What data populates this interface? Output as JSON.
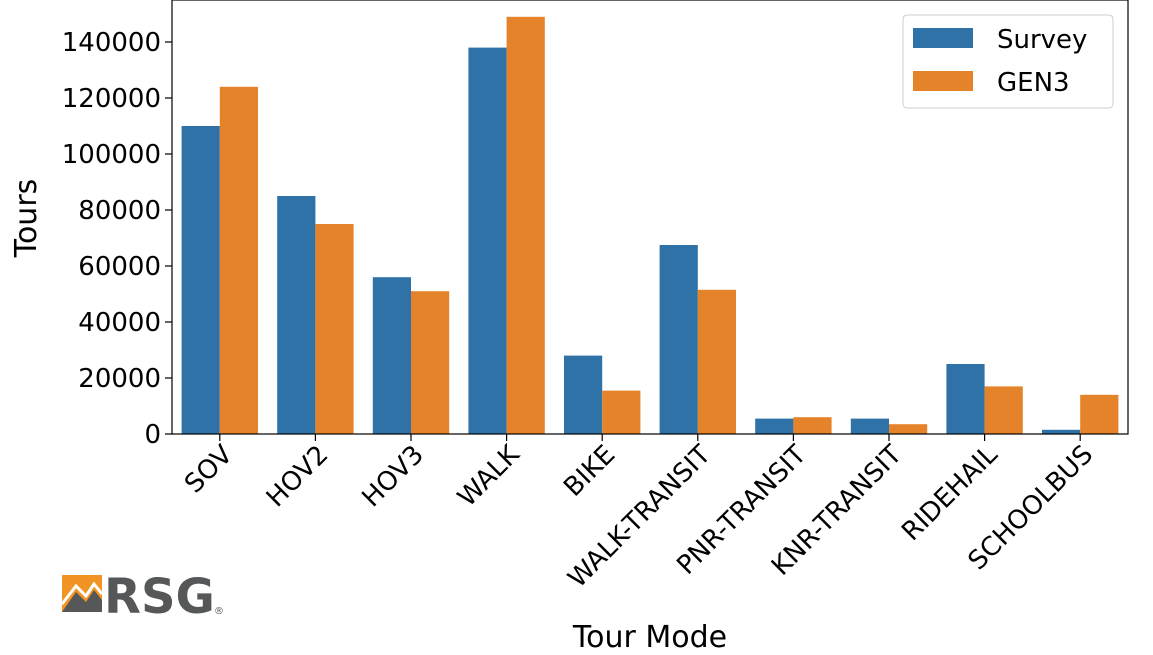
{
  "chart_data": {
    "type": "bar",
    "title": "",
    "xlabel": "Tour Mode",
    "ylabel": "Tours",
    "categories": [
      "SOV",
      "HOV2",
      "HOV3",
      "WALK",
      "BIKE",
      "WALK-TRANSIT",
      "PNR-TRANSIT",
      "KNR-TRANSIT",
      "RIDEHAIL",
      "SCHOOLBUS"
    ],
    "series": [
      {
        "name": "Survey",
        "color": "#2f72a8",
        "values": [
          110000,
          85000,
          56000,
          138000,
          28000,
          67500,
          5500,
          5500,
          25000,
          1500
        ]
      },
      {
        "name": "GEN3",
        "color": "#e5832a",
        "values": [
          124000,
          75000,
          51000,
          149000,
          15500,
          51500,
          6000,
          3500,
          17000,
          14000
        ]
      }
    ],
    "ylim": [
      0,
      155000
    ],
    "yticks": [
      0,
      20000,
      40000,
      60000,
      80000,
      100000,
      120000,
      140000
    ],
    "legend_position": "top-right",
    "grid": false
  },
  "logo": {
    "text": "RSG",
    "mark": "®"
  }
}
